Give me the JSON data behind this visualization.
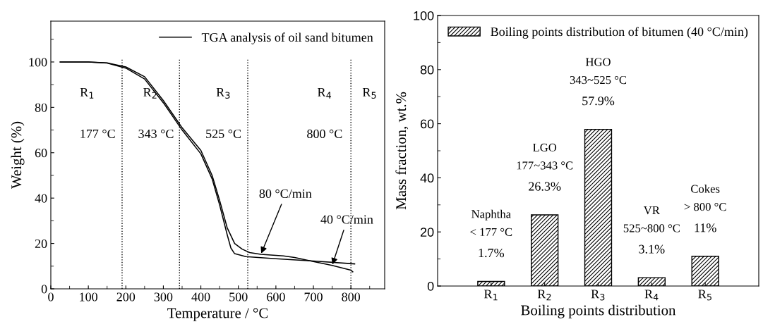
{
  "chart_data": [
    {
      "type": "line",
      "xlabel": "Temperature / °C",
      "ylabel": "Weight (%)",
      "xlim": [
        0,
        890
      ],
      "ylim": [
        0,
        118
      ],
      "xticks": [
        0,
        100,
        200,
        300,
        400,
        500,
        600,
        700,
        800
      ],
      "yticks": [
        0,
        20,
        40,
        60,
        80,
        100
      ],
      "legend": "top right",
      "grid": false,
      "marker": "none",
      "line_style": "solid",
      "series": [
        {
          "name": "TGA analysis of oil sand bitumen",
          "color": "#000000",
          "x": [
            25,
            100,
            150,
            200,
            250,
            300,
            350,
            400,
            430,
            450,
            470,
            490,
            510,
            530,
            560,
            620,
            650,
            700,
            750,
            800,
            805
          ],
          "values": [
            100,
            100,
            99.6,
            97.8,
            93.5,
            83,
            71,
            61,
            50,
            39,
            27,
            20,
            17.5,
            16,
            15.2,
            14.5,
            13.8,
            12,
            10.3,
            8.2,
            7.5
          ]
        },
        {
          "color": "#000000",
          "x": [
            25,
            100,
            150,
            200,
            250,
            300,
            350,
            400,
            430,
            450,
            470,
            480,
            490,
            520,
            600,
            700,
            810
          ],
          "values": [
            100,
            100,
            99.5,
            97.3,
            92.5,
            82,
            70,
            59.5,
            48.5,
            37,
            24,
            18,
            15.5,
            14.2,
            13.3,
            12.3,
            11
          ]
        }
      ],
      "ref_lines": [
        {
          "axis": "x",
          "value": 190,
          "color": "#000000",
          "line_style": "dotted"
        },
        {
          "axis": "x",
          "value": 343,
          "color": "#000000",
          "line_style": "dotted"
        },
        {
          "axis": "x",
          "value": 525,
          "color": "#000000",
          "line_style": "dotted"
        },
        {
          "axis": "x",
          "value": 800,
          "color": "#000000",
          "line_style": "dotted"
        }
      ],
      "annotations": [
        "R$_{1}$",
        "R$_{2}$",
        "R$_{3}$",
        "R$_{4}$",
        "R$_{5}$",
        "177 °C",
        "343 °C",
        "525 °C",
        "800 °C",
        {
          "text": "80 °C/min",
          "x": 560,
          "y": 15.2
        },
        {
          "text": "40 °C/min",
          "x": 750,
          "y": 10.3
        }
      ]
    },
    {
      "type": "bar",
      "xlabel": "Boiling points distribution",
      "ylabel": "Mass fraction, wt.%",
      "ylim": [
        0,
        100
      ],
      "yticks": [
        0,
        20,
        40,
        60,
        80,
        100
      ],
      "categories": [
        "R$_{1}$",
        "R$_{2}$",
        "R$_{3}$",
        "R$_{4}$",
        "R$_{5}$"
      ],
      "legend": "top",
      "grid": false,
      "series": [
        {
          "name": "Boiling points distribution of bitumen (40 °C/min)",
          "color": "#000000",
          "values": [
            1.7,
            26.3,
            57.9,
            3.1,
            11
          ],
          "value_labels": [
            "1.7%",
            "26.3%",
            "57.9%",
            "3.1%",
            "11%"
          ]
        }
      ],
      "annotations": [
        "Naphtha\n< 177 °C",
        "LGO\n177~343 °C",
        "HGO\n343~525 °C",
        "VR\n525~800 °C",
        "Cokes\n> 800 °C"
      ]
    }
  ]
}
